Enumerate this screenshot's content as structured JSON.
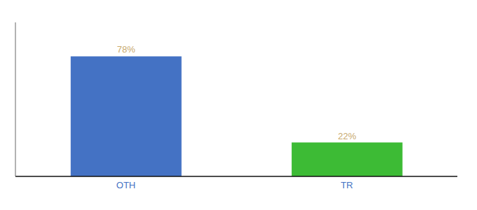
{
  "chart_data": {
    "type": "bar",
    "categories": [
      "OTH",
      "TR"
    ],
    "values": [
      78,
      22
    ],
    "value_labels": [
      "78%",
      "22%"
    ],
    "colors": [
      "#4472c4",
      "#3dbb35"
    ],
    "ylim": [
      0,
      100
    ],
    "data_labels": true,
    "tick_labels": "x"
  }
}
